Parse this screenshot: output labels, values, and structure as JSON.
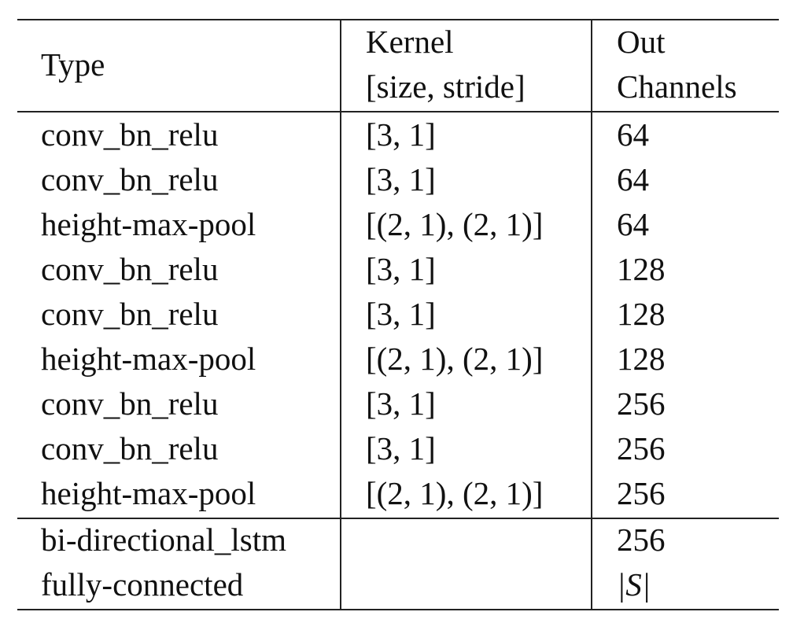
{
  "table": {
    "header": {
      "type": "Type",
      "kernel_line1": "Kernel",
      "kernel_line2": "[size, stride]",
      "out_line1": "Out",
      "out_line2": "Channels"
    },
    "conv_rows": [
      {
        "type": "conv_bn_relu",
        "kernel": "[3, 1]",
        "out": "64"
      },
      {
        "type": "conv_bn_relu",
        "kernel": "[3, 1]",
        "out": "64"
      },
      {
        "type": "height-max-pool",
        "kernel": "[(2, 1), (2, 1)]",
        "out": "64"
      },
      {
        "type": "conv_bn_relu",
        "kernel": "[3, 1]",
        "out": "128"
      },
      {
        "type": "conv_bn_relu",
        "kernel": "[3, 1]",
        "out": "128"
      },
      {
        "type": "height-max-pool",
        "kernel": "[(2, 1), (2, 1)]",
        "out": "128"
      },
      {
        "type": "conv_bn_relu",
        "kernel": "[3, 1]",
        "out": "256"
      },
      {
        "type": "conv_bn_relu",
        "kernel": "[3, 1]",
        "out": "256"
      },
      {
        "type": "height-max-pool",
        "kernel": "[(2, 1), (2, 1)]",
        "out": "256"
      }
    ],
    "rnn_rows": [
      {
        "type": "bi-directional_lstm",
        "kernel": "",
        "out": "256"
      },
      {
        "type": "fully-connected",
        "kernel": "",
        "out": "|S|"
      }
    ]
  }
}
